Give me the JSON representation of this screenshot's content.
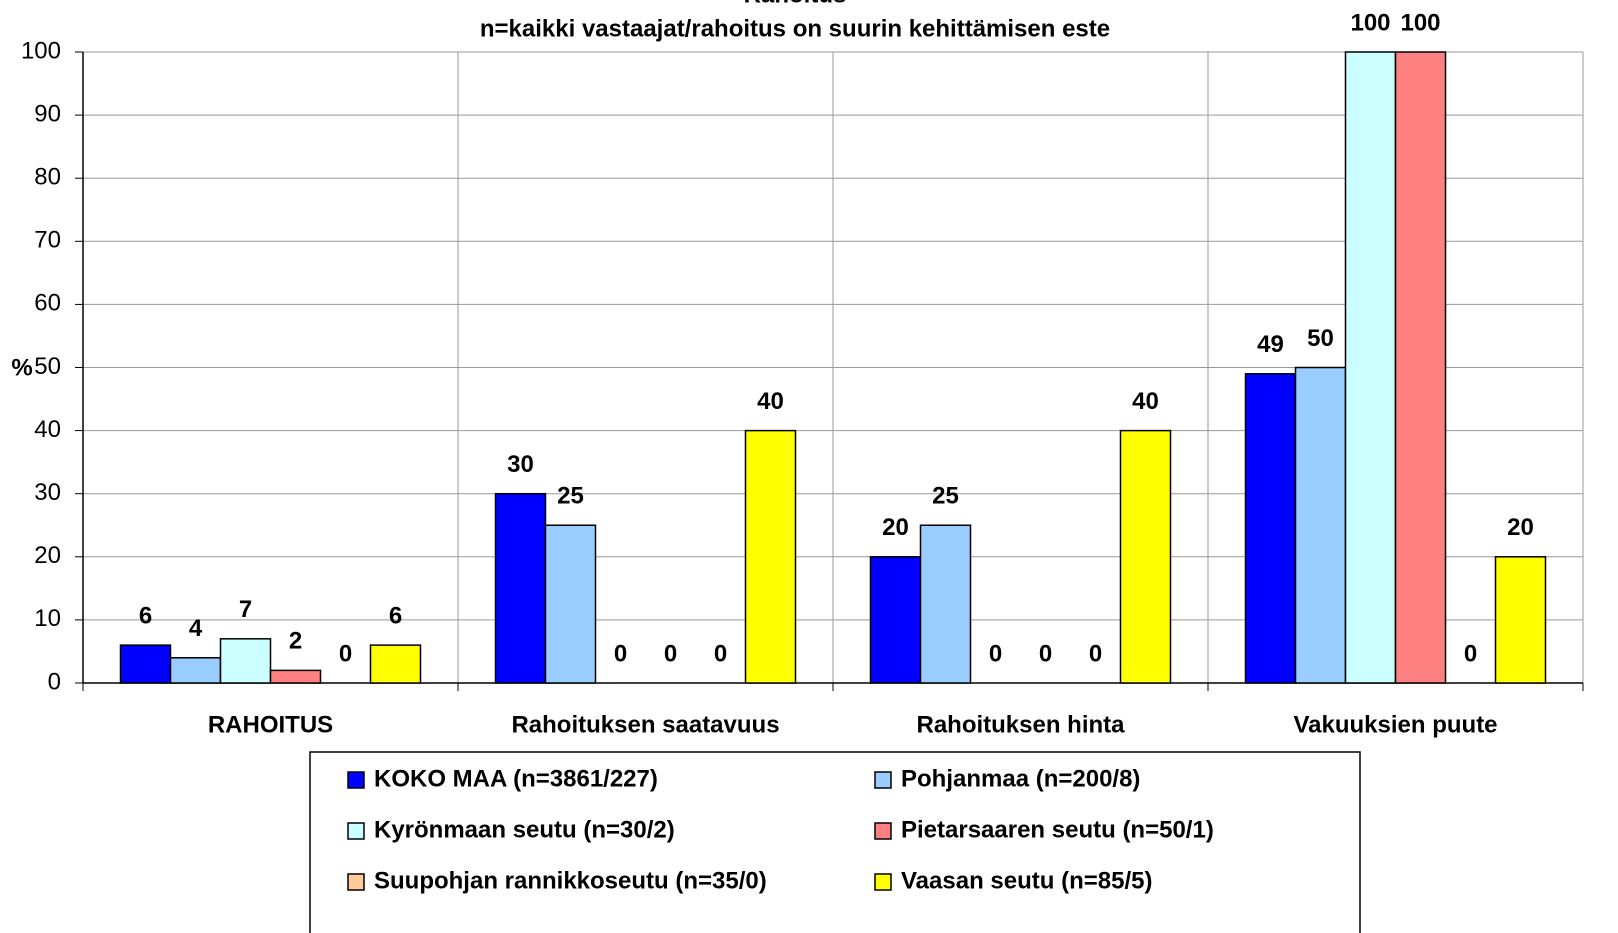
{
  "chart_data": {
    "type": "bar",
    "title": "Rahoitus",
    "subtitle": "n=kaikki vastaajat/rahoitus on suurin kehittämisen este",
    "y_label": "%",
    "categories": [
      "RAHOITUS",
      "Rahoituksen saatavuus",
      "Rahoituksen hinta",
      "Vakuuksien puute"
    ],
    "series": [
      {
        "name": "KOKO MAA (n=3861/227)",
        "color": "#0000ff",
        "values": [
          6,
          30,
          20,
          49
        ]
      },
      {
        "name": "Pohjanmaa (n=200/8)",
        "color": "#99ccff",
        "values": [
          4,
          25,
          25,
          50
        ]
      },
      {
        "name": "Kyrönmaan seutu (n=30/2)",
        "color": "#ccffff",
        "values": [
          7,
          0,
          0,
          100
        ]
      },
      {
        "name": "Pietarsaaren seutu (n=50/1)",
        "color": "#ff8080",
        "values": [
          2,
          0,
          0,
          100
        ]
      },
      {
        "name": "Suupohjan rannikkoseutu (n=35/0)",
        "color": "#ffcc99",
        "values": [
          0,
          0,
          0,
          0
        ]
      },
      {
        "name": "Vaasan seutu (n=85/5)",
        "color": "#ffff00",
        "values": [
          6,
          40,
          40,
          20
        ]
      }
    ],
    "ylim": [
      0,
      100
    ],
    "yticks": [
      0,
      10,
      20,
      30,
      40,
      50,
      60,
      70,
      80,
      90,
      100
    ],
    "grid": true,
    "legend": "bottom"
  }
}
